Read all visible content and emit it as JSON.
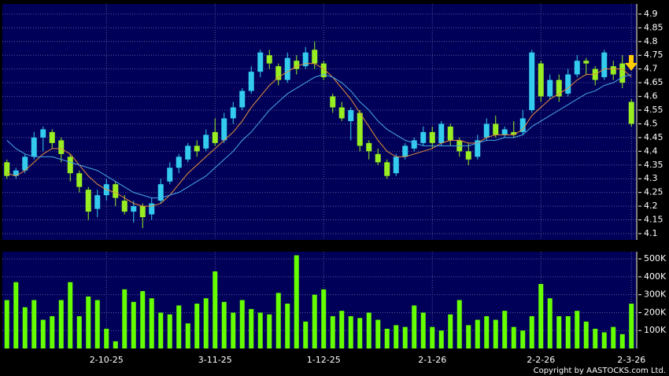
{
  "chart_data": [
    {
      "type": "candlestick",
      "open": [
        4.36,
        4.31,
        4.33,
        4.38,
        4.45,
        4.47,
        4.44,
        4.38,
        4.32,
        4.26,
        4.19,
        4.24,
        4.28,
        4.22,
        4.18,
        4.2,
        4.17,
        4.22,
        4.29,
        4.34,
        4.37,
        4.42,
        4.41,
        4.47,
        4.44,
        4.52,
        4.56,
        4.62,
        4.69,
        4.75,
        4.71,
        4.66,
        4.73,
        4.71,
        4.77,
        4.72,
        4.6,
        4.56,
        4.51,
        4.54,
        4.43,
        4.39,
        4.36,
        4.32,
        4.38,
        4.41,
        4.43,
        4.47,
        4.43,
        4.49,
        4.44,
        4.4,
        4.38,
        4.45,
        4.5,
        4.46,
        4.47,
        4.47,
        4.55,
        4.72,
        4.6,
        4.66,
        4.61,
        4.68,
        4.73,
        4.7,
        4.67,
        4.71,
        4.72,
        4.58
      ],
      "high": [
        4.37,
        4.34,
        4.39,
        4.47,
        4.49,
        4.48,
        4.45,
        4.39,
        4.33,
        4.27,
        4.26,
        4.3,
        4.29,
        4.24,
        4.22,
        4.21,
        4.23,
        4.3,
        4.36,
        4.39,
        4.43,
        4.44,
        4.48,
        4.52,
        4.54,
        4.58,
        4.63,
        4.71,
        4.77,
        4.77,
        4.72,
        4.76,
        4.75,
        4.78,
        4.8,
        4.73,
        4.61,
        4.58,
        4.56,
        4.55,
        4.44,
        4.41,
        4.37,
        4.39,
        4.43,
        4.45,
        4.49,
        4.49,
        4.51,
        4.5,
        4.45,
        4.43,
        4.46,
        4.52,
        4.53,
        4.49,
        4.51,
        4.55,
        4.77,
        4.73,
        4.68,
        4.68,
        4.7,
        4.75,
        4.74,
        4.71,
        4.77,
        4.73,
        4.75,
        4.59
      ],
      "low": [
        4.3,
        4.3,
        4.32,
        4.37,
        4.4,
        4.41,
        4.36,
        4.29,
        4.25,
        4.15,
        4.16,
        4.22,
        4.2,
        4.17,
        4.14,
        4.12,
        4.15,
        4.21,
        4.28,
        4.32,
        4.36,
        4.38,
        4.4,
        4.42,
        4.43,
        4.5,
        4.55,
        4.61,
        4.67,
        4.7,
        4.64,
        4.65,
        4.68,
        4.7,
        4.7,
        4.66,
        4.54,
        4.51,
        4.44,
        4.4,
        4.37,
        4.35,
        4.3,
        4.31,
        4.37,
        4.4,
        4.42,
        4.41,
        4.42,
        4.42,
        4.38,
        4.35,
        4.37,
        4.44,
        4.45,
        4.45,
        4.45,
        4.46,
        4.54,
        4.58,
        4.59,
        4.58,
        4.6,
        4.67,
        4.68,
        4.64,
        4.66,
        4.66,
        4.63,
        4.49
      ],
      "close": [
        4.31,
        4.33,
        4.38,
        4.45,
        4.48,
        4.43,
        4.39,
        4.32,
        4.27,
        4.18,
        4.24,
        4.28,
        4.23,
        4.18,
        4.2,
        4.16,
        4.21,
        4.28,
        4.34,
        4.38,
        4.42,
        4.4,
        4.46,
        4.43,
        4.52,
        4.56,
        4.62,
        4.69,
        4.76,
        4.72,
        4.66,
        4.74,
        4.7,
        4.76,
        4.72,
        4.67,
        4.56,
        4.52,
        4.55,
        4.42,
        4.4,
        4.36,
        4.31,
        4.38,
        4.42,
        4.44,
        4.47,
        4.43,
        4.5,
        4.44,
        4.4,
        4.37,
        4.44,
        4.5,
        4.46,
        4.48,
        4.46,
        4.52,
        4.76,
        4.6,
        4.66,
        4.6,
        4.68,
        4.73,
        4.72,
        4.66,
        4.76,
        4.68,
        4.65,
        4.5
      ],
      "up_color": "#33ccee",
      "down_color": "#99ee22",
      "series": [
        {
          "color": "#e8903a",
          "values": [
            4.32,
            4.31,
            4.33,
            4.36,
            4.39,
            4.41,
            4.41,
            4.39,
            4.35,
            4.31,
            4.28,
            4.26,
            4.25,
            4.23,
            4.21,
            4.2,
            4.2,
            4.21,
            4.24,
            4.28,
            4.32,
            4.35,
            4.38,
            4.41,
            4.44,
            4.47,
            4.51,
            4.56,
            4.6,
            4.64,
            4.67,
            4.69,
            4.71,
            4.72,
            4.72,
            4.7,
            4.67,
            4.63,
            4.59,
            4.54,
            4.49,
            4.44,
            4.4,
            4.38,
            4.38,
            4.39,
            4.4,
            4.41,
            4.43,
            4.44,
            4.44,
            4.43,
            4.43,
            4.45,
            4.46,
            4.46,
            4.46,
            4.48,
            4.53,
            4.56,
            4.59,
            4.61,
            4.63,
            4.66,
            4.68,
            4.68,
            4.7,
            4.7,
            4.7,
            4.67
          ]
        },
        {
          "color": "#4aa8e8",
          "values": [
            4.44,
            4.41,
            4.39,
            4.38,
            4.38,
            4.38,
            4.37,
            4.36,
            4.35,
            4.34,
            4.33,
            4.31,
            4.29,
            4.27,
            4.25,
            4.24,
            4.23,
            4.23,
            4.24,
            4.25,
            4.27,
            4.29,
            4.31,
            4.34,
            4.37,
            4.4,
            4.44,
            4.47,
            4.51,
            4.55,
            4.58,
            4.61,
            4.63,
            4.65,
            4.67,
            4.68,
            4.67,
            4.65,
            4.62,
            4.58,
            4.55,
            4.51,
            4.48,
            4.46,
            4.44,
            4.43,
            4.42,
            4.42,
            4.42,
            4.42,
            4.42,
            4.42,
            4.43,
            4.44,
            4.44,
            4.45,
            4.45,
            4.46,
            4.49,
            4.51,
            4.53,
            4.55,
            4.57,
            4.59,
            4.61,
            4.62,
            4.64,
            4.65,
            4.67,
            4.68
          ]
        }
      ],
      "ylim": [
        4.077,
        4.937
      ],
      "yticks": [
        4.1,
        4.15,
        4.2,
        4.25,
        4.3,
        4.35,
        4.4,
        4.45,
        4.5,
        4.55,
        4.6,
        4.65,
        4.7,
        4.75,
        4.8,
        4.85,
        4.9
      ],
      "grid": true
    },
    {
      "type": "bar",
      "color": "#66ff00",
      "values": [
        270000,
        370000,
        230000,
        270000,
        160000,
        180000,
        270000,
        370000,
        180000,
        290000,
        270000,
        110000,
        40000,
        330000,
        260000,
        320000,
        280000,
        200000,
        190000,
        240000,
        140000,
        250000,
        280000,
        430000,
        260000,
        200000,
        270000,
        220000,
        200000,
        190000,
        310000,
        250000,
        520000,
        150000,
        300000,
        330000,
        180000,
        210000,
        180000,
        170000,
        200000,
        160000,
        110000,
        130000,
        120000,
        240000,
        200000,
        120000,
        100000,
        190000,
        270000,
        130000,
        160000,
        180000,
        160000,
        210000,
        120000,
        100000,
        180000,
        360000,
        280000,
        180000,
        180000,
        210000,
        150000,
        110000,
        90000,
        120000,
        80000,
        250000
      ],
      "xlim": [
        -0.5,
        69.5
      ],
      "xticks": [
        {
          "value": 11,
          "label": "2-10-25"
        },
        {
          "value": 23,
          "label": "3-11-25"
        },
        {
          "value": 35,
          "label": "1-12-25"
        },
        {
          "value": 47,
          "label": "2-1-26"
        },
        {
          "value": 59,
          "label": "2-2-26"
        },
        {
          "value": 69,
          "label": "2-3-26"
        }
      ],
      "ylim": [
        0,
        540000
      ],
      "yticks": [
        {
          "value": 100000,
          "label": "100K"
        },
        {
          "value": 200000,
          "label": "200K"
        },
        {
          "value": 300000,
          "label": "300K"
        },
        {
          "value": 400000,
          "label": "400K"
        },
        {
          "value": 500000,
          "label": "500K"
        }
      ],
      "grid": true
    }
  ],
  "copyright": "Copyright by AASTOCKS.com Ltd."
}
